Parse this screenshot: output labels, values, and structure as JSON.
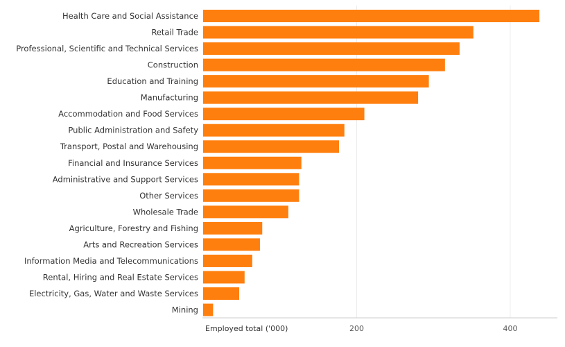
{
  "chart_data": {
    "type": "bar",
    "orientation": "horizontal",
    "title": "",
    "xlabel": "Employed total ('000)",
    "ylabel": "",
    "xlim": [
      0,
      460
    ],
    "xticks": [
      200,
      400
    ],
    "grid": true,
    "bar_color": "#ff7f0e",
    "categories": [
      "Health Care and Social Assistance",
      "Retail Trade",
      "Professional, Scientific and Technical Services",
      "Construction",
      "Education and Training",
      "Manufacturing",
      "Accommodation and Food Services",
      "Public Administration and Safety",
      "Transport, Postal and Warehousing",
      "Financial and Insurance Services",
      "Administrative and Support Services",
      "Other Services",
      "Wholesale Trade",
      "Agriculture, Forestry and Fishing",
      "Arts and Recreation Services",
      "Information Media and Telecommunications",
      "Rental, Hiring and Real Estate Services",
      "Electricity, Gas, Water and Waste Services",
      "Mining"
    ],
    "values": [
      438,
      352,
      334,
      315,
      294,
      280,
      210,
      184,
      177,
      128,
      125,
      125,
      111,
      77,
      74,
      64,
      54,
      47,
      13
    ]
  }
}
